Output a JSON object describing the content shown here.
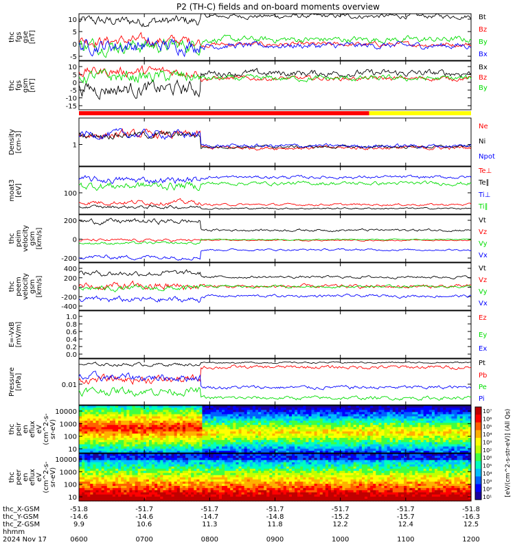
{
  "chart_data": {
    "type": "line",
    "title": "P2 (TH-C) fields and on-board moments overview",
    "date_label": "2024 Nov 17",
    "x_axis": {
      "hhmm_ticks": [
        "0600",
        "0700",
        "0800",
        "0900",
        "1000",
        "1100",
        "1200"
      ],
      "rows": [
        {
          "label": "thc_X-GSM",
          "values": [
            "-51.8",
            "-51.7",
            "-51.7",
            "-51.7",
            "-51.7",
            "-51.7",
            "-51.8"
          ]
        },
        {
          "label": "thc_Y-GSM",
          "values": [
            "-14.6",
            "-14.6",
            "-14.7",
            "-14.8",
            "-15.2",
            "-15.7",
            "-16.3"
          ]
        },
        {
          "label": "thc_Z-GSM",
          "values": [
            "9.9",
            "10.6",
            "11.3",
            "11.8",
            "12.2",
            "12.4",
            "12.5"
          ]
        },
        {
          "label": "hhmm",
          "values": []
        }
      ]
    },
    "colorbar": {
      "ticks": [
        "10⁷",
        "10⁶",
        "10⁵",
        "10⁴",
        "10³",
        "10²",
        "10⁶",
        "10⁵",
        "10⁴",
        "10³",
        "10²",
        "10¹"
      ],
      "label": "[eV/(cm^2-s-str-eV)] (All Qs)"
    },
    "panels": [
      {
        "id": "fgs-gse",
        "ylabel_lines": [
          "thc",
          "fgs",
          "gse",
          "[nT]"
        ],
        "yticks": [
          "10",
          "5",
          "0",
          "-5"
        ],
        "ylim": [
          -6,
          13
        ],
        "series": [
          {
            "name": "Bt",
            "color": "#000000",
            "pre": 10,
            "post": 12,
            "amp": 3
          },
          {
            "name": "Bz",
            "color": "#ff0000",
            "pre": 2,
            "post": 0.5,
            "amp": 3
          },
          {
            "name": "By",
            "color": "#00dd00",
            "pre": 0,
            "post": 2.5,
            "amp": 4
          },
          {
            "name": "Bx",
            "color": "#0000ff",
            "pre": 0,
            "post": 0,
            "amp": 4
          }
        ]
      },
      {
        "id": "fgs-gsm",
        "ylabel_lines": [
          "thc",
          "fgs",
          "gsm",
          "[nT]"
        ],
        "yticks": [
          "10",
          "5",
          "0",
          "-5",
          "-10",
          "-15"
        ],
        "ylim": [
          -17,
          11
        ],
        "series": [
          {
            "name": "Bx",
            "color": "#000000",
            "pre": -5,
            "post": 4,
            "amp": 6
          },
          {
            "name": "Bz",
            "color": "#ff0000",
            "pre": 5,
            "post": 1,
            "amp": 4
          },
          {
            "name": "By",
            "color": "#00dd00",
            "pre": 2,
            "post": 1,
            "amp": 5
          }
        ]
      },
      {
        "id": "density",
        "ylabel_lines": [
          "Density",
          "[cm-3]"
        ],
        "yticks": [
          "1"
        ],
        "ylim": [
          0,
          1
        ],
        "series": [
          {
            "name": "Ne",
            "color": "#ff0000",
            "pre": 0.65,
            "post": 0.38,
            "amp": 0.12
          },
          {
            "name": "Ni",
            "color": "#000000",
            "pre": 0.65,
            "post": 0.4,
            "amp": 0.1
          },
          {
            "name": "Npot",
            "color": "#0000ff",
            "pre": 0.66,
            "post": 0.42,
            "amp": 0.12
          }
        ]
      },
      {
        "id": "temperature",
        "ylabel_lines": [
          "moat3",
          "[eV]"
        ],
        "yticks": [
          "100"
        ],
        "ylim": [
          0,
          1
        ],
        "series": [
          {
            "name": "Te⊥",
            "color": "#ff0000",
            "pre": 0.25,
            "post": 0.2,
            "amp": 0.07
          },
          {
            "name": "Te∥",
            "color": "#000000",
            "pre": 0.15,
            "post": 0.12,
            "amp": 0.05
          },
          {
            "name": "Ti⊥",
            "color": "#0000ff",
            "pre": 0.72,
            "post": 0.78,
            "amp": 0.1
          },
          {
            "name": "Ti∥",
            "color": "#00dd00",
            "pre": 0.6,
            "post": 0.65,
            "amp": 0.12
          }
        ]
      },
      {
        "id": "peim-velocity",
        "ylabel_lines": [
          "thc",
          "peim",
          "velocity",
          "gsm",
          "[km/s]"
        ],
        "yticks": [
          "200",
          "0",
          "-200"
        ],
        "ylim": [
          -300,
          350
        ],
        "series": [
          {
            "name": "Vt",
            "color": "#000000",
            "pre": 260,
            "post": 140,
            "amp": 50
          },
          {
            "name": "Vz",
            "color": "#ff0000",
            "pre": 0,
            "post": 0,
            "amp": 25
          },
          {
            "name": "Vy",
            "color": "#00dd00",
            "pre": -40,
            "post": 10,
            "amp": 25
          },
          {
            "name": "Vx",
            "color": "#0000ff",
            "pre": -230,
            "post": -130,
            "amp": 40
          }
        ]
      },
      {
        "id": "peem-velocity",
        "ylabel_lines": [
          "thc",
          "peem",
          "velocity",
          "gsm",
          "[km/s]"
        ],
        "yticks": [
          "400",
          "200",
          "0",
          "-200",
          "-400"
        ],
        "ylim": [
          -500,
          500
        ],
        "series": [
          {
            "name": "Vt",
            "color": "#000000",
            "pre": 280,
            "post": 200,
            "amp": 80
          },
          {
            "name": "Vz",
            "color": "#ff0000",
            "pre": 0,
            "post": 0,
            "amp": 120
          },
          {
            "name": "Vy",
            "color": "#00dd00",
            "pre": -40,
            "post": 0,
            "amp": 80
          },
          {
            "name": "Vx",
            "color": "#0000ff",
            "pre": -280,
            "post": -200,
            "amp": 90
          }
        ]
      },
      {
        "id": "efield",
        "ylabel_lines": [
          "E=-VxB",
          "[mV/m]"
        ],
        "yticks": [
          "1.0",
          "0.8",
          "0.6",
          "0.4",
          "0.2",
          "0.0"
        ],
        "ylim": [
          0,
          1
        ],
        "series": [
          {
            "name": "Ez",
            "color": "#ff0000"
          },
          {
            "name": "Ey",
            "color": "#00dd00"
          },
          {
            "name": "Ex",
            "color": "#0000ff"
          }
        ]
      },
      {
        "id": "pressure",
        "ylabel_lines": [
          "Pressure",
          "[nPa]"
        ],
        "yticks": [
          "0.01"
        ],
        "ylim": [
          0,
          1
        ],
        "series": [
          {
            "name": "Pt",
            "color": "#000000",
            "pre": 0.88,
            "post": 0.92,
            "amp": 0.05
          },
          {
            "name": "Pb",
            "color": "#ff0000",
            "pre": 0.55,
            "post": 0.82,
            "amp": 0.12
          },
          {
            "name": "Pe",
            "color": "#00dd00",
            "pre": 0.3,
            "post": 0.15,
            "amp": 0.12
          },
          {
            "name": "Pi",
            "color": "#0000ff",
            "pre": 0.6,
            "post": 0.38,
            "amp": 0.12
          }
        ]
      },
      {
        "id": "peir-eflux",
        "type": "heatmap",
        "ylabel_lines": [
          "thc",
          "peir",
          "en",
          "eflux",
          "eV",
          "(cm^2-s-",
          "sr-eV)"
        ],
        "yticks": [
          "10000",
          "1000",
          "100",
          "10"
        ]
      },
      {
        "id": "peer-eflux",
        "type": "heatmap",
        "ylabel_lines": [
          "thc",
          "peer",
          "en",
          "eflux",
          "eV",
          "(cm^2-s-",
          "sr-eV)"
        ],
        "yticks": [
          "10000",
          "1000",
          "100",
          "10"
        ]
      }
    ]
  }
}
